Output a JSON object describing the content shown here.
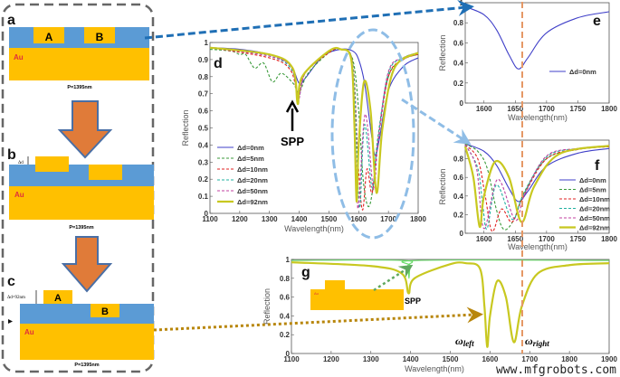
{
  "colors": {
    "substrate": "#ffc000",
    "dielectric": "#5b9bd5",
    "arrow_orange": "#e07b39",
    "arrow_blue": "#1f6fb5",
    "marker_line": "#e59866",
    "au_text": "#e0303a"
  },
  "diagrams": {
    "a": {
      "panel": "a",
      "block_a": "A",
      "block_b": "B",
      "material": "Au",
      "period": "P=1395nm"
    },
    "b": {
      "panel": "b",
      "delta": "Δd",
      "material": "Au",
      "period": "P=1395nm"
    },
    "c": {
      "panel": "c",
      "delta": "Δd=92nm",
      "block_a": "A",
      "block_b": "B",
      "material": "Au",
      "period": "P=1395nm"
    },
    "g_inset": {
      "material": "Au"
    }
  },
  "annotations": {
    "spp_d": "SPP",
    "spp_g": "SPP",
    "omega_left": "ω",
    "omega_left_sub": "left",
    "omega_right": "ω",
    "omega_right_sub": "right"
  },
  "watermark": "www.mfgrobots.com",
  "chart_data": [
    {
      "panel": "d",
      "type": "line",
      "xlabel": "Wavelength(nm)",
      "ylabel": "Reflection",
      "xlim": [
        1100,
        1800
      ],
      "ylim": [
        0,
        1
      ],
      "xticks": [
        1100,
        1200,
        1300,
        1400,
        1500,
        1600,
        1700,
        1800
      ],
      "yticks": [
        0,
        0.1,
        0.2,
        0.3,
        0.4,
        0.5,
        0.6,
        0.7,
        0.8,
        0.9,
        1
      ],
      "legend": "left",
      "series": [
        {
          "name": "Δd=0nm",
          "color": "#3f3fc8",
          "dash": "solid",
          "points": [
            [
              1100,
              0.97
            ],
            [
              1200,
              0.96
            ],
            [
              1300,
              0.93
            ],
            [
              1370,
              0.87
            ],
            [
              1400,
              0.76
            ],
            [
              1420,
              0.79
            ],
            [
              1480,
              0.92
            ],
            [
              1540,
              0.96
            ],
            [
              1580,
              0.95
            ],
            [
              1600,
              0.9
            ],
            [
              1620,
              0.76
            ],
            [
              1640,
              0.5
            ],
            [
              1655,
              0.34
            ],
            [
              1670,
              0.44
            ],
            [
              1700,
              0.72
            ],
            [
              1750,
              0.86
            ],
            [
              1800,
              0.91
            ]
          ]
        },
        {
          "name": "Δd=5nm",
          "color": "#3a9a3a",
          "dash": "dashed",
          "points": [
            [
              1100,
              0.96
            ],
            [
              1170,
              0.95
            ],
            [
              1200,
              0.93
            ],
            [
              1220,
              0.93
            ],
            [
              1250,
              0.85
            ],
            [
              1280,
              0.88
            ],
            [
              1310,
              0.77
            ],
            [
              1340,
              0.82
            ],
            [
              1380,
              0.76
            ],
            [
              1400,
              0.71
            ],
            [
              1430,
              0.82
            ],
            [
              1500,
              0.94
            ],
            [
              1540,
              0.96
            ],
            [
              1580,
              0.9
            ],
            [
              1600,
              0.6
            ],
            [
              1615,
              0.2
            ],
            [
              1632,
              0.04
            ],
            [
              1648,
              0.15
            ],
            [
              1665,
              0.45
            ],
            [
              1700,
              0.8
            ],
            [
              1750,
              0.9
            ],
            [
              1800,
              0.93
            ]
          ]
        },
        {
          "name": "Δd=10nm",
          "color": "#e02020",
          "dash": "dashed",
          "points": [
            [
              1100,
              0.97
            ],
            [
              1300,
              0.91
            ],
            [
              1370,
              0.84
            ],
            [
              1398,
              0.69
            ],
            [
              1420,
              0.82
            ],
            [
              1500,
              0.94
            ],
            [
              1540,
              0.96
            ],
            [
              1580,
              0.88
            ],
            [
              1598,
              0.3
            ],
            [
              1613,
              0.02
            ],
            [
              1628,
              0.26
            ],
            [
              1645,
              0.12
            ],
            [
              1662,
              0.38
            ],
            [
              1700,
              0.8
            ],
            [
              1750,
              0.9
            ],
            [
              1800,
              0.93
            ]
          ]
        },
        {
          "name": "Δd=20nm",
          "color": "#20b0a0",
          "dash": "dashed",
          "points": [
            [
              1100,
              0.97
            ],
            [
              1300,
              0.92
            ],
            [
              1375,
              0.84
            ],
            [
              1397,
              0.67
            ],
            [
              1420,
              0.82
            ],
            [
              1500,
              0.95
            ],
            [
              1540,
              0.96
            ],
            [
              1580,
              0.87
            ],
            [
              1597,
              0.2
            ],
            [
              1605,
              0.05
            ],
            [
              1620,
              0.52
            ],
            [
              1645,
              0.15
            ],
            [
              1662,
              0.4
            ],
            [
              1700,
              0.82
            ],
            [
              1750,
              0.91
            ],
            [
              1800,
              0.94
            ]
          ]
        },
        {
          "name": "Δd=50nm",
          "color": "#c040a0",
          "dash": "dashed",
          "points": [
            [
              1100,
              0.97
            ],
            [
              1300,
              0.92
            ],
            [
              1375,
              0.85
            ],
            [
              1396,
              0.66
            ],
            [
              1420,
              0.82
            ],
            [
              1500,
              0.95
            ],
            [
              1540,
              0.96
            ],
            [
              1578,
              0.87
            ],
            [
              1593,
              0.2
            ],
            [
              1600,
              0.05
            ],
            [
              1622,
              0.58
            ],
            [
              1650,
              0.14
            ],
            [
              1665,
              0.42
            ],
            [
              1700,
              0.83
            ],
            [
              1750,
              0.91
            ],
            [
              1800,
              0.94
            ]
          ]
        },
        {
          "name": "Δd=92nm",
          "color": "#c8c820",
          "dash": "thick",
          "points": [
            [
              1100,
              0.97
            ],
            [
              1300,
              0.93
            ],
            [
              1378,
              0.85
            ],
            [
              1395,
              0.64
            ],
            [
              1410,
              0.8
            ],
            [
              1500,
              0.95
            ],
            [
              1540,
              0.96
            ],
            [
              1575,
              0.9
            ],
            [
              1586,
              0.5
            ],
            [
              1593,
              0.07
            ],
            [
              1600,
              0.4
            ],
            [
              1618,
              0.77
            ],
            [
              1640,
              0.6
            ],
            [
              1660,
              0.12
            ],
            [
              1680,
              0.5
            ],
            [
              1720,
              0.85
            ],
            [
              1800,
              0.94
            ]
          ]
        }
      ]
    },
    {
      "panel": "e",
      "type": "line",
      "xlabel": "Wavelength(nm)",
      "ylabel": "Reflection",
      "xlim": [
        1570,
        1800
      ],
      "ylim": [
        0,
        1
      ],
      "xticks": [
        1600,
        1650,
        1700,
        1750,
        1800
      ],
      "yticks": [
        0,
        0.2,
        0.4,
        0.6,
        0.8,
        1
      ],
      "legend": "right",
      "series": [
        {
          "name": "Δd=0nm",
          "color": "#3f3fc8",
          "dash": "solid",
          "points": [
            [
              1570,
              0.96
            ],
            [
              1600,
              0.88
            ],
            [
              1620,
              0.73
            ],
            [
              1640,
              0.48
            ],
            [
              1655,
              0.34
            ],
            [
              1670,
              0.45
            ],
            [
              1700,
              0.7
            ],
            [
              1750,
              0.85
            ],
            [
              1800,
              0.91
            ]
          ]
        }
      ]
    },
    {
      "panel": "f",
      "type": "line",
      "xlabel": "Wavelength(nm)",
      "ylabel": "Reflection",
      "xlim": [
        1570,
        1800
      ],
      "ylim": [
        0,
        1
      ],
      "xticks": [
        1600,
        1650,
        1700,
        1750,
        1800
      ],
      "yticks": [
        0,
        0.2,
        0.4,
        0.6,
        0.8,
        1
      ],
      "legend": "right",
      "series": [
        {
          "name": "Δd=0nm",
          "color": "#3f3fc8",
          "dash": "solid",
          "points": [
            [
              1570,
              0.96
            ],
            [
              1600,
              0.88
            ],
            [
              1620,
              0.73
            ],
            [
              1640,
              0.48
            ],
            [
              1655,
              0.34
            ],
            [
              1670,
              0.45
            ],
            [
              1700,
              0.72
            ],
            [
              1750,
              0.86
            ],
            [
              1800,
              0.91
            ]
          ]
        },
        {
          "name": "Δd=5nm",
          "color": "#3a9a3a",
          "dash": "dashed",
          "points": [
            [
              1570,
              0.96
            ],
            [
              1590,
              0.88
            ],
            [
              1605,
              0.7
            ],
            [
              1620,
              0.25
            ],
            [
              1632,
              0.04
            ],
            [
              1648,
              0.15
            ],
            [
              1665,
              0.45
            ],
            [
              1700,
              0.8
            ],
            [
              1750,
              0.9
            ],
            [
              1800,
              0.93
            ]
          ]
        },
        {
          "name": "Δd=10nm",
          "color": "#e02020",
          "dash": "dashed",
          "points": [
            [
              1570,
              0.95
            ],
            [
              1590,
              0.8
            ],
            [
              1602,
              0.4
            ],
            [
              1613,
              0.02
            ],
            [
              1628,
              0.26
            ],
            [
              1645,
              0.12
            ],
            [
              1662,
              0.38
            ],
            [
              1700,
              0.8
            ],
            [
              1750,
              0.9
            ],
            [
              1800,
              0.93
            ]
          ]
        },
        {
          "name": "Δd=20nm",
          "color": "#20b0a0",
          "dash": "dashed",
          "points": [
            [
              1570,
              0.95
            ],
            [
              1590,
              0.7
            ],
            [
              1598,
              0.3
            ],
            [
              1605,
              0.05
            ],
            [
              1620,
              0.52
            ],
            [
              1645,
              0.15
            ],
            [
              1662,
              0.4
            ],
            [
              1700,
              0.82
            ],
            [
              1750,
              0.91
            ],
            [
              1800,
              0.94
            ]
          ]
        },
        {
          "name": "Δd=50nm",
          "color": "#c040a0",
          "dash": "dashed",
          "points": [
            [
              1570,
              0.95
            ],
            [
              1588,
              0.7
            ],
            [
              1600,
              0.05
            ],
            [
              1622,
              0.58
            ],
            [
              1650,
              0.14
            ],
            [
              1665,
              0.42
            ],
            [
              1700,
              0.83
            ],
            [
              1750,
              0.91
            ],
            [
              1800,
              0.94
            ]
          ]
        },
        {
          "name": "Δd=92nm",
          "color": "#c8c820",
          "dash": "thick",
          "points": [
            [
              1570,
              0.93
            ],
            [
              1583,
              0.6
            ],
            [
              1593,
              0.07
            ],
            [
              1600,
              0.4
            ],
            [
              1618,
              0.77
            ],
            [
              1640,
              0.6
            ],
            [
              1660,
              0.12
            ],
            [
              1680,
              0.5
            ],
            [
              1720,
              0.85
            ],
            [
              1800,
              0.94
            ]
          ]
        }
      ]
    },
    {
      "panel": "g",
      "type": "line",
      "xlabel": "Wavelength(nm)",
      "ylabel": "Reflection",
      "xlim": [
        1100,
        1900
      ],
      "ylim": [
        0,
        1
      ],
      "xticks": [
        1100,
        1200,
        1300,
        1400,
        1500,
        1600,
        1700,
        1800,
        1900
      ],
      "yticks": [
        0,
        0.2,
        0.4,
        0.6,
        0.8,
        1
      ],
      "series": [
        {
          "color": "#66dd66",
          "dash": "solid",
          "points": [
            [
              1100,
              0.99
            ],
            [
              1380,
              0.99
            ],
            [
              1393,
              0.93
            ],
            [
              1396,
              0.8
            ],
            [
              1400,
              0.93
            ],
            [
              1420,
              0.99
            ],
            [
              1900,
              0.99
            ]
          ]
        },
        {
          "color": "#c8c820",
          "dash": "thick",
          "points": [
            [
              1100,
              0.97
            ],
            [
              1300,
              0.93
            ],
            [
              1378,
              0.85
            ],
            [
              1395,
              0.64
            ],
            [
              1410,
              0.8
            ],
            [
              1500,
              0.95
            ],
            [
              1540,
              0.96
            ],
            [
              1575,
              0.9
            ],
            [
              1586,
              0.5
            ],
            [
              1593,
              0.07
            ],
            [
              1600,
              0.4
            ],
            [
              1618,
              0.77
            ],
            [
              1640,
              0.6
            ],
            [
              1660,
              0.12
            ],
            [
              1680,
              0.5
            ],
            [
              1720,
              0.85
            ],
            [
              1800,
              0.94
            ],
            [
              1900,
              0.96
            ]
          ]
        }
      ]
    }
  ]
}
